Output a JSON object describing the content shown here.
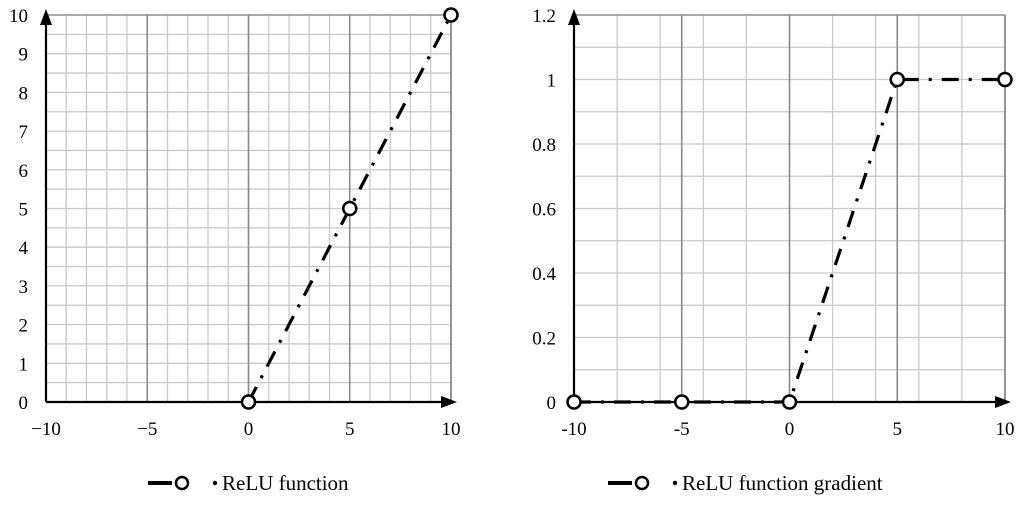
{
  "chart_data": [
    {
      "type": "line",
      "x": [
        0,
        5,
        10
      ],
      "series": [
        {
          "name": "ReLU function",
          "values": [
            0,
            5,
            10
          ]
        }
      ],
      "xlim": [
        -10,
        10
      ],
      "ylim": [
        0,
        10
      ],
      "xticks": [
        -10,
        -5,
        0,
        5,
        10
      ],
      "xtick_labels": [
        "−10",
        "−5",
        "0",
        "5",
        "10"
      ],
      "yticks": [
        0,
        1,
        2,
        3,
        4,
        5,
        6,
        7,
        8,
        9,
        10
      ],
      "ytick_labels": [
        "0",
        "1",
        "2",
        "3",
        "4",
        "5",
        "6",
        "7",
        "8",
        "9",
        "10"
      ],
      "grid": true,
      "line_style": "long dash dot",
      "marker": "open circle",
      "legend_position": "bottom"
    },
    {
      "type": "line",
      "x": [
        -10,
        -5,
        0,
        5,
        10
      ],
      "series": [
        {
          "name": "ReLU function gradient",
          "values": [
            0,
            0,
            0,
            1,
            1
          ]
        }
      ],
      "xlim": [
        -10,
        10
      ],
      "ylim": [
        0,
        1.2
      ],
      "xticks": [
        -10,
        -5,
        0,
        5,
        10
      ],
      "xtick_labels": [
        "-10",
        "-5",
        "0",
        "5",
        "10"
      ],
      "yticks": [
        0,
        0.2,
        0.4,
        0.6,
        0.8,
        1,
        1.2
      ],
      "ytick_labels": [
        "0",
        "0.2",
        "0.4",
        "0.6",
        "0.8",
        "1",
        "1.2"
      ],
      "grid": true,
      "line_style": "long dash dot",
      "marker": "open circle",
      "legend_position": "bottom"
    }
  ]
}
